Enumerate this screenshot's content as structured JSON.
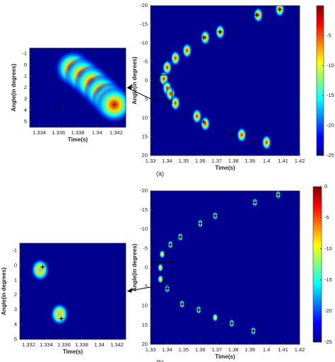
{
  "chart_data": [
    {
      "type": "heatmap",
      "xlabel": "Time(s)",
      "ylabel": "Angle(in degrees)",
      "xlim": [
        1.33,
        1.42
      ],
      "xticks": [
        1.33,
        1.34,
        1.35,
        1.36,
        1.37,
        1.38,
        1.39,
        1.4,
        1.41,
        1.42
      ],
      "ylim": [
        20,
        -20
      ],
      "yticks": [
        -20,
        -15,
        -10,
        -5,
        0,
        5,
        10,
        15,
        20
      ],
      "color": "#c00000",
      "blobs": {
        "x": [
          1.408,
          1.395,
          1.372,
          1.363,
          1.352,
          1.345,
          1.34,
          1.338,
          1.34,
          1.342,
          1.345,
          1.358,
          1.363,
          1.385,
          1.4
        ],
        "y": [
          -19,
          -17.5,
          -13,
          -11.5,
          -8,
          -6,
          -3.5,
          -0.5,
          2,
          3.5,
          6,
          9.5,
          11.5,
          14.5,
          16.5
        ]
      },
      "markers": {
        "x": [
          1.408,
          1.394,
          1.372,
          1.362,
          1.338,
          1.342,
          1.336,
          1.35,
          1.362,
          1.379,
          1.392
        ],
        "y": [
          -19,
          -17.5,
          -13,
          -11.5,
          -5,
          6,
          1,
          9,
          11,
          14.5,
          16.5
        ]
      },
      "clim": [
        -25,
        0
      ],
      "cticks": [
        -5,
        -10,
        -15,
        -20,
        -25
      ],
      "caption": "(a)"
    },
    {
      "type": "heatmap",
      "xlabel": "Time(s)",
      "ylabel": "Angle(in degrees)",
      "xlim": [
        1.333,
        1.343
      ],
      "xticks": [
        1.334,
        1.336,
        1.338,
        1.34,
        1.342
      ],
      "ylim": [
        5.5,
        -1.5
      ],
      "yticks": [
        -1,
        0,
        1,
        2,
        3,
        4,
        5
      ],
      "color": "#b00000",
      "blobs": {
        "x": [
          1.3375,
          1.3385,
          1.3395,
          1.3405,
          1.3413,
          1.3418
        ],
        "y": [
          0.3,
          0.9,
          1.6,
          2.4,
          3.1,
          3.5
        ]
      },
      "markers": {
        "x": [
          1.336
        ],
        "y": [
          3.6
        ]
      }
    },
    {
      "type": "heatmap",
      "xlabel": "Time(s)",
      "ylabel": "Angle(in degrees)",
      "xlim": [
        1.33,
        1.42
      ],
      "xticks": [
        1.33,
        1.34,
        1.35,
        1.36,
        1.37,
        1.38,
        1.39,
        1.4,
        1.41,
        1.42
      ],
      "ylim": [
        20,
        -20
      ],
      "yticks": [
        -20,
        -15,
        -10,
        -5,
        0,
        5,
        10,
        15,
        20
      ],
      "color": "#a0ff60",
      "blobs": {
        "x": [
          1.407,
          1.393,
          1.369,
          1.36,
          1.348,
          1.342,
          1.337,
          1.336,
          1.336,
          1.34,
          1.349,
          1.359,
          1.369,
          1.379,
          1.392
        ],
        "y": [
          -19,
          -17,
          -13.5,
          -11.5,
          -8,
          -6,
          -3.5,
          0,
          3,
          5.5,
          9.5,
          11,
          13,
          14.5,
          16.5
        ]
      },
      "markers": {
        "x": [
          1.407,
          1.393,
          1.369,
          1.36,
          1.348,
          1.342,
          1.339,
          1.34,
          1.349,
          1.359,
          1.379,
          1.392
        ],
        "y": [
          -19,
          -17,
          -13.5,
          -11.5,
          -8,
          -6,
          3.5,
          5.5,
          9.5,
          11,
          14.5,
          16.5
        ]
      },
      "clim": [
        -25,
        0
      ],
      "cticks": [
        0,
        -5,
        -10,
        -15,
        -20,
        -25
      ],
      "caption": "(b)"
    },
    {
      "type": "heatmap",
      "xlabel": "Time(s)",
      "ylabel": "Angle(in degrees)",
      "xlim": [
        1.331,
        1.343
      ],
      "xticks": [
        1.332,
        1.334,
        1.336,
        1.338,
        1.34,
        1.342
      ],
      "ylim": [
        5,
        -1.5
      ],
      "yticks": [
        -1,
        0,
        1,
        2,
        3,
        4,
        5
      ],
      "color": "#40e0ff",
      "blobs": {
        "x": [
          1.3333,
          1.3355
        ],
        "y": [
          0.3,
          3.3
        ]
      },
      "markers": {
        "x": [
          1.3336,
          1.3357
        ],
        "y": [
          0.1,
          3.6
        ]
      }
    }
  ]
}
